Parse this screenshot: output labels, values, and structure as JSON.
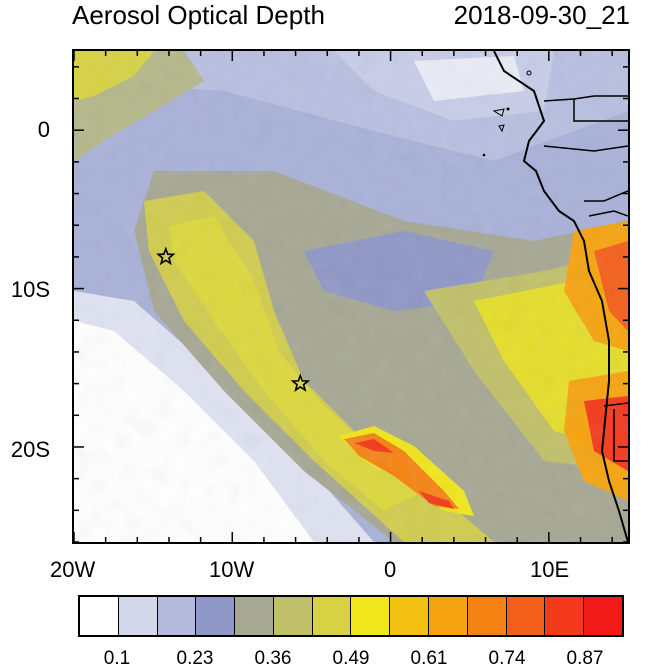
{
  "header": {
    "title": "Aerosol Optical Depth",
    "timestamp": "2018-09-30_21"
  },
  "axes": {
    "lon_labels": [
      "20W",
      "10W",
      "0",
      "10E"
    ],
    "lat_labels": [
      "0",
      "10S",
      "20S"
    ]
  },
  "colorbar": {
    "colors": [
      "#ffffff",
      "#d3d7ea",
      "#b4badc",
      "#8f97c6",
      "#a6a894",
      "#c1c06a",
      "#d6d244",
      "#f0e61c",
      "#f2c111",
      "#f5a410",
      "#f58313",
      "#f4601b",
      "#f33a1c",
      "#f21b1a"
    ],
    "labels": [
      "0.1",
      "0.23",
      "0.36",
      "0.49",
      "0.61",
      "0.74",
      "0.87"
    ]
  },
  "markers": [
    {
      "name": "station-star-1",
      "lon": -14.2,
      "lat": -8.0
    },
    {
      "name": "station-star-2",
      "lon": -5.7,
      "lat": -16.0
    }
  ]
}
